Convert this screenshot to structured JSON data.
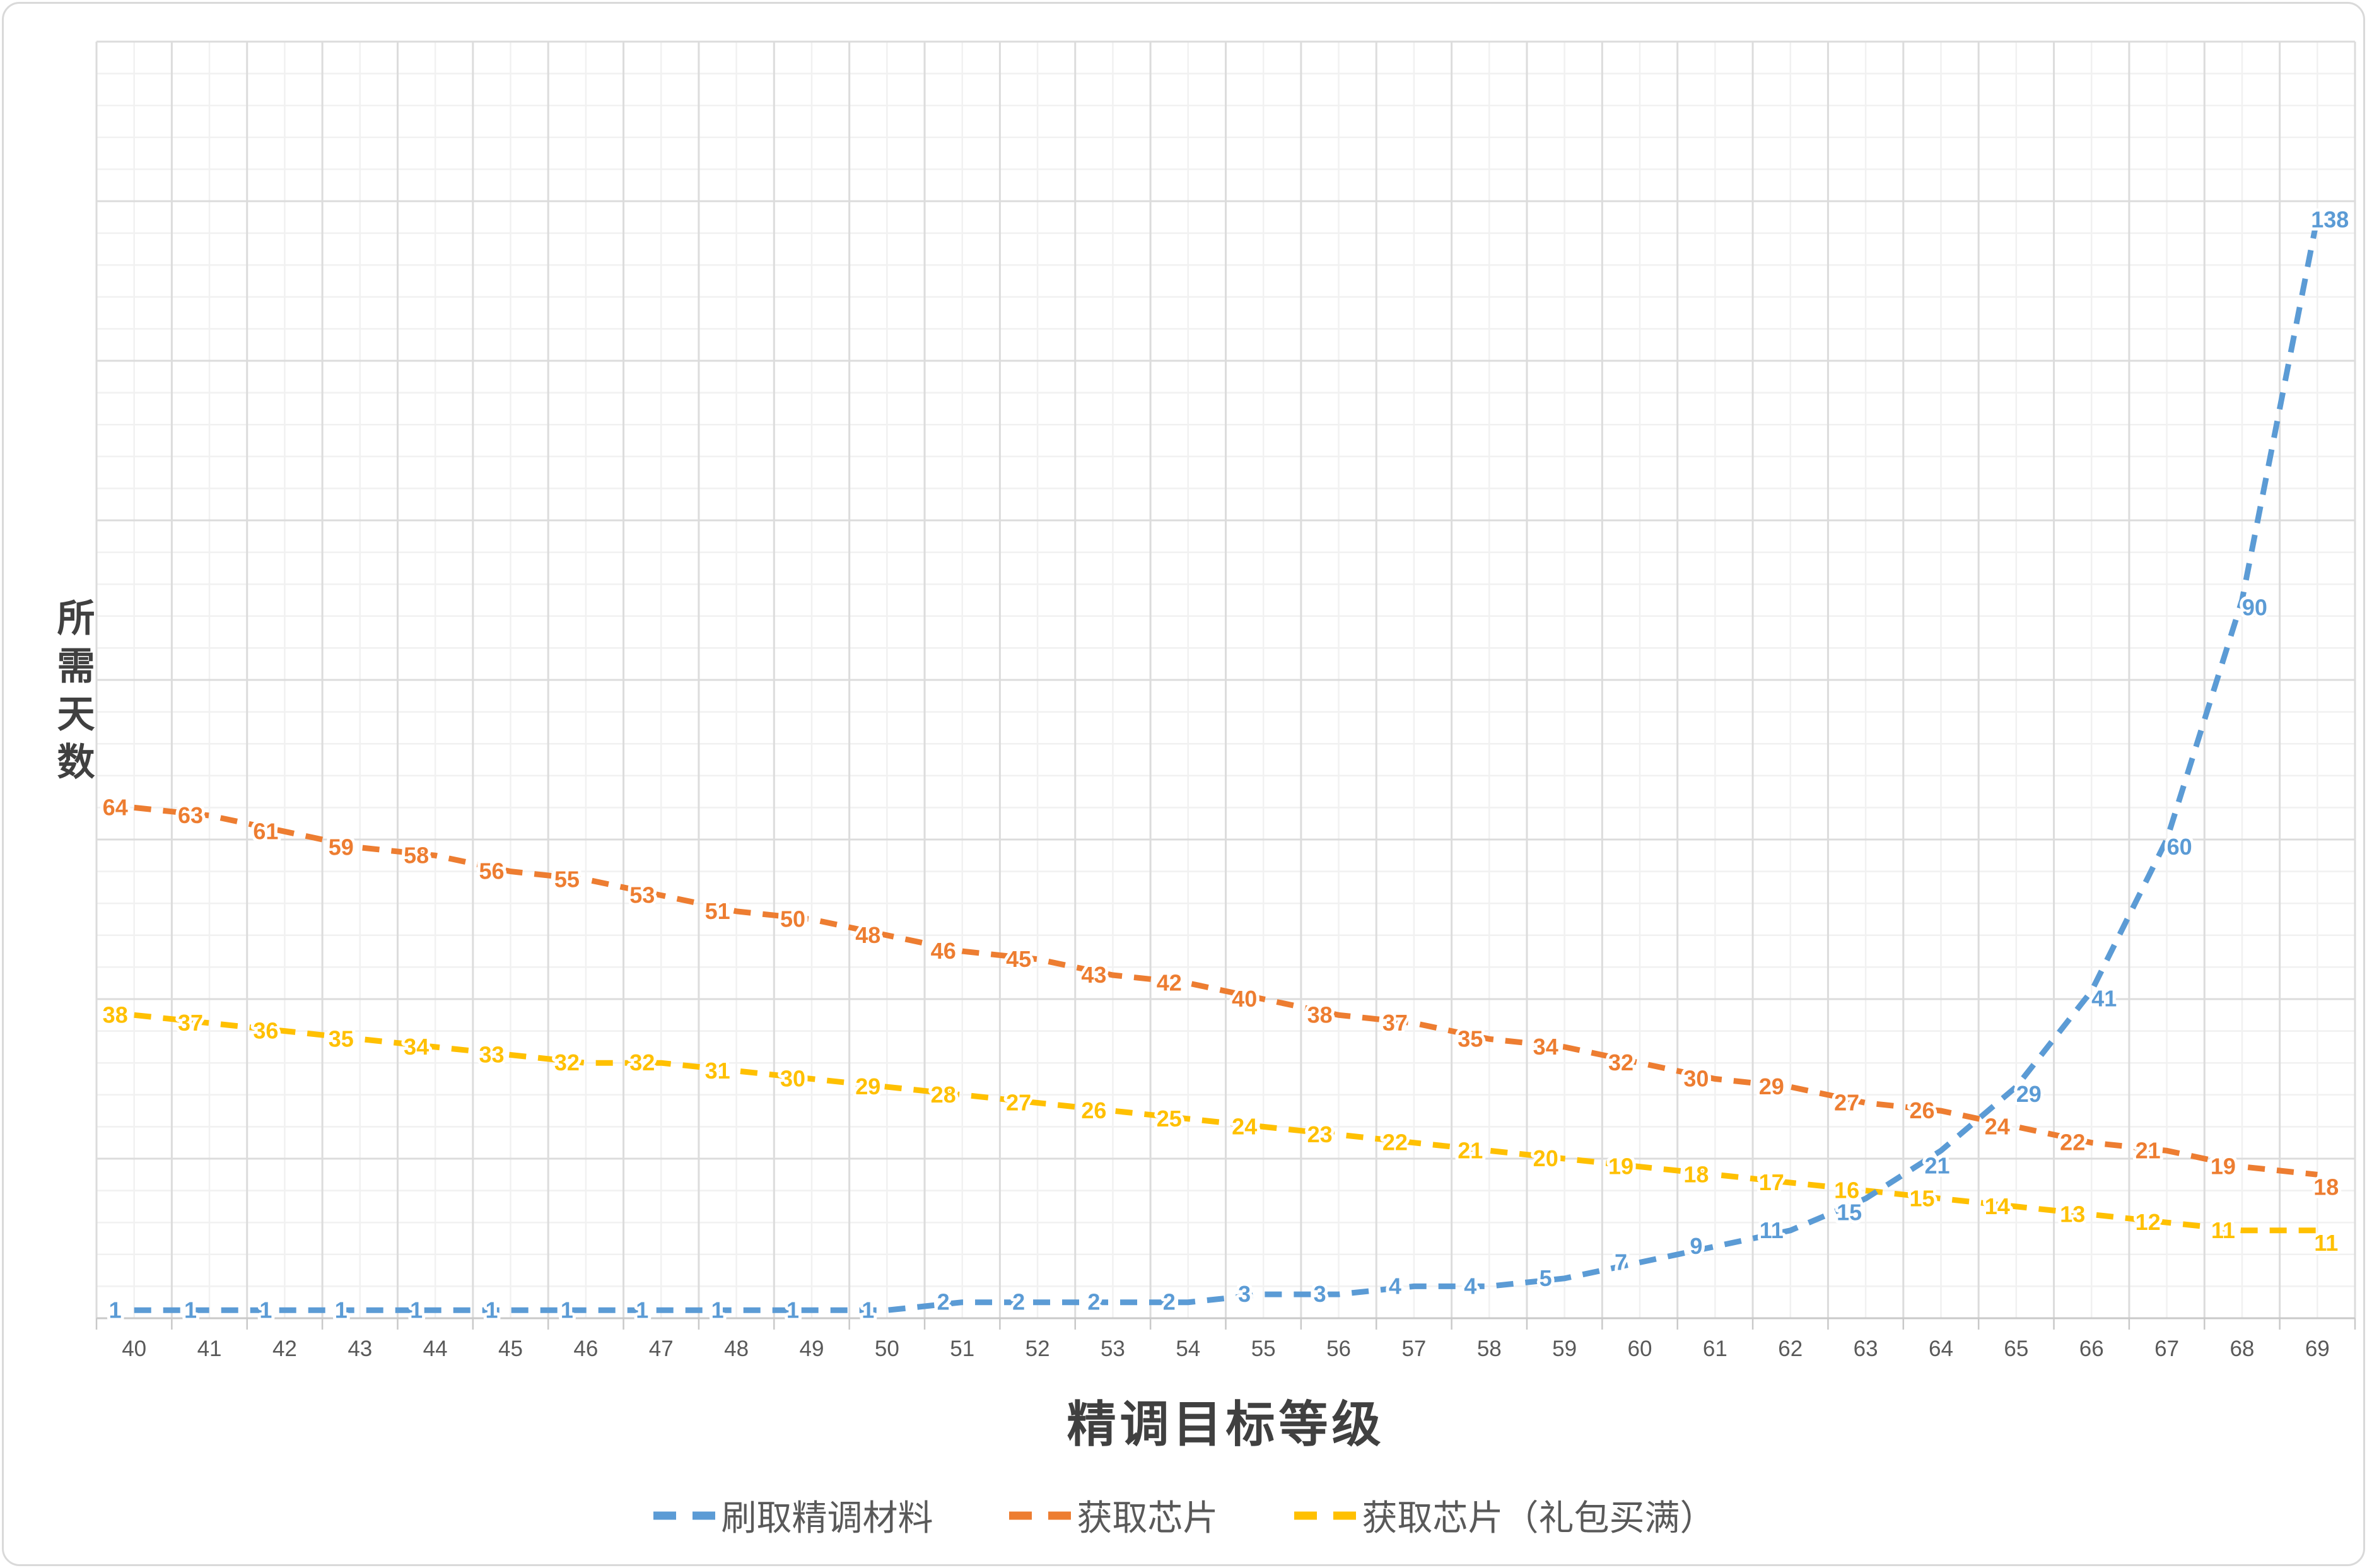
{
  "chart_data": {
    "type": "line",
    "line_style": "dashed",
    "data_labels": true,
    "xlabel": "精调目标等级",
    "ylabel": "所需天数",
    "x": [
      40,
      41,
      42,
      43,
      44,
      45,
      46,
      47,
      48,
      49,
      50,
      51,
      52,
      53,
      54,
      55,
      56,
      57,
      58,
      59,
      60,
      61,
      62,
      63,
      64,
      65,
      66,
      67,
      68,
      69
    ],
    "series": [
      {
        "name": "刷取精调材料",
        "color": "#5B9BD5",
        "values": [
          1,
          1,
          1,
          1,
          1,
          1,
          1,
          1,
          1,
          1,
          1,
          2,
          2,
          2,
          2,
          3,
          3,
          4,
          4,
          5,
          7,
          9,
          11,
          15,
          21,
          29,
          41,
          60,
          90,
          138
        ]
      },
      {
        "name": "获取芯片",
        "color": "#ED7D31",
        "values": [
          64,
          63,
          61,
          59,
          58,
          56,
          55,
          53,
          51,
          50,
          48,
          46,
          45,
          43,
          42,
          40,
          38,
          37,
          35,
          34,
          32,
          30,
          29,
          27,
          26,
          24,
          22,
          21,
          19,
          18
        ]
      },
      {
        "name": "获取芯片（礼包买满）",
        "color": "#FFC000",
        "values": [
          38,
          37,
          36,
          35,
          34,
          33,
          32,
          32,
          31,
          30,
          29,
          28,
          27,
          26,
          25,
          24,
          23,
          22,
          21,
          20,
          19,
          18,
          17,
          16,
          15,
          14,
          13,
          12,
          11,
          11
        ]
      }
    ],
    "ylim": [
      0,
      160
    ],
    "y_tick_labels_visible": false,
    "grid": {
      "minor_step": 4,
      "major_step": 20,
      "minor_color": "#f1f1f1",
      "major_color": "#dcdcdc"
    },
    "axis_color": "#c9c9c9",
    "tick_label_color": "#595959",
    "title_color": "#404040",
    "legend_position": "bottom"
  }
}
